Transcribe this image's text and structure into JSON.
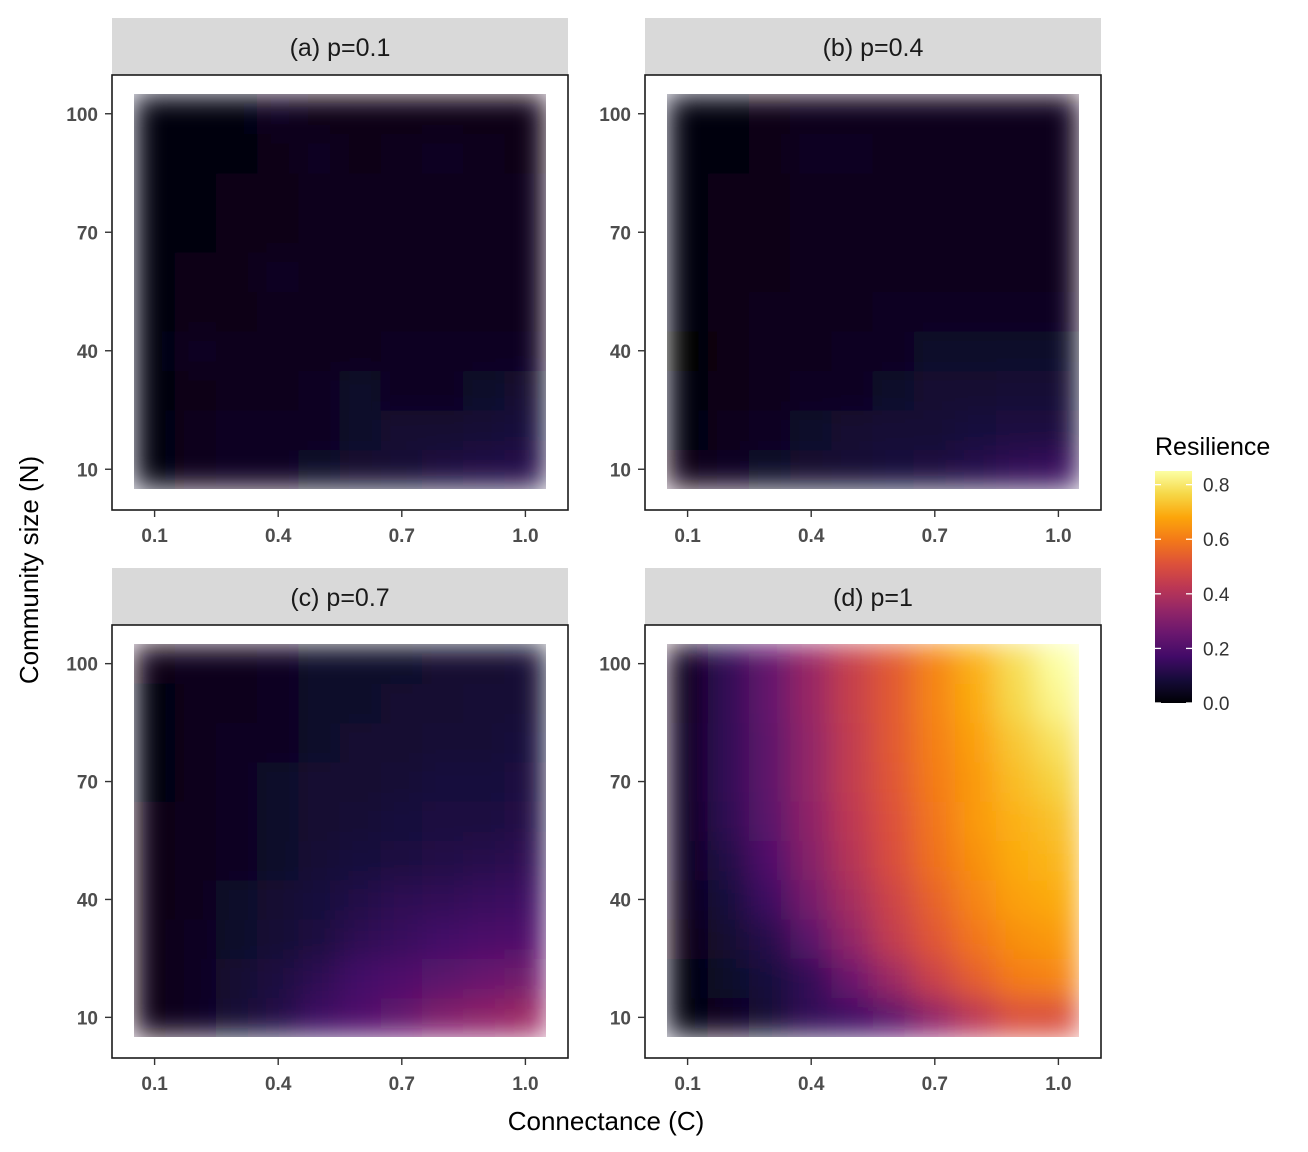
{
  "chart_data": {
    "type": "heatmap",
    "xlabel": "Connectance (C)",
    "ylabel": "Community size (N)",
    "x": [
      0.1,
      0.2,
      0.3,
      0.4,
      0.5,
      0.6,
      0.7,
      0.8,
      0.9,
      1.0
    ],
    "y": [
      10,
      20,
      30,
      40,
      50,
      60,
      70,
      80,
      90,
      100
    ],
    "x_ticks": [
      "0.1",
      "0.4",
      "0.7",
      "1.0"
    ],
    "y_ticks": [
      "10",
      "40",
      "70",
      "100"
    ],
    "xlim": [
      0.05,
      1.05
    ],
    "ylim": [
      5,
      105
    ],
    "legend": {
      "title": "Resilience",
      "position": "right",
      "ticks": [
        "0.0",
        "0.2",
        "0.4",
        "0.6",
        "0.8"
      ],
      "range": [
        0,
        0.85
      ],
      "colormap": "inferno"
    },
    "panels": [
      {
        "strip": "(a)   p=0.1",
        "z": [
          [
            0.02,
            0.04,
            0.05,
            0.05,
            0.06,
            0.07,
            0.08,
            0.1,
            0.11,
            0.12
          ],
          [
            0.02,
            0.04,
            0.05,
            0.05,
            0.05,
            0.06,
            0.07,
            0.07,
            0.08,
            0.09
          ],
          [
            0.02,
            0.03,
            0.04,
            0.04,
            0.05,
            0.06,
            0.05,
            0.05,
            0.06,
            0.07
          ],
          [
            0.02,
            0.05,
            0.04,
            0.04,
            0.04,
            0.04,
            0.05,
            0.05,
            0.05,
            0.05
          ],
          [
            0.02,
            0.03,
            0.03,
            0.04,
            0.04,
            0.04,
            0.04,
            0.04,
            0.04,
            0.04
          ],
          [
            0.02,
            0.03,
            0.03,
            0.05,
            0.04,
            0.04,
            0.04,
            0.04,
            0.04,
            0.04
          ],
          [
            0.02,
            0.02,
            0.03,
            0.03,
            0.04,
            0.04,
            0.04,
            0.04,
            0.04,
            0.04
          ],
          [
            0.01,
            0.02,
            0.03,
            0.03,
            0.04,
            0.04,
            0.04,
            0.04,
            0.04,
            0.04
          ],
          [
            0.01,
            0.02,
            0.02,
            0.03,
            0.05,
            0.03,
            0.04,
            0.05,
            0.04,
            0.03
          ],
          [
            0.01,
            0.02,
            0.02,
            0.05,
            0.03,
            0.03,
            0.03,
            0.03,
            0.03,
            0.03
          ]
        ]
      },
      {
        "strip": "(b)   p=0.4",
        "z": [
          [
            0.03,
            0.05,
            0.06,
            0.07,
            0.08,
            0.09,
            0.1,
            0.12,
            0.14,
            0.15
          ],
          [
            0.02,
            0.04,
            0.05,
            0.06,
            0.07,
            0.08,
            0.08,
            0.09,
            0.1,
            0.1
          ],
          [
            0.01,
            0.03,
            0.04,
            0.05,
            0.05,
            0.06,
            0.07,
            0.07,
            0.08,
            0.08
          ],
          [
            0.0,
            0.03,
            0.04,
            0.04,
            0.05,
            0.05,
            0.06,
            0.06,
            0.06,
            0.06
          ],
          [
            0.01,
            0.03,
            0.04,
            0.04,
            0.04,
            0.05,
            0.05,
            0.05,
            0.05,
            0.05
          ],
          [
            0.02,
            0.03,
            0.03,
            0.04,
            0.04,
            0.04,
            0.04,
            0.04,
            0.04,
            0.04
          ],
          [
            0.01,
            0.03,
            0.03,
            0.04,
            0.04,
            0.04,
            0.04,
            0.04,
            0.04,
            0.04
          ],
          [
            0.01,
            0.03,
            0.03,
            0.04,
            0.04,
            0.04,
            0.04,
            0.04,
            0.04,
            0.04
          ],
          [
            0.01,
            0.02,
            0.03,
            0.05,
            0.05,
            0.04,
            0.04,
            0.04,
            0.04,
            0.04
          ],
          [
            0.01,
            0.02,
            0.03,
            0.04,
            0.04,
            0.04,
            0.04,
            0.04,
            0.04,
            0.04
          ]
        ]
      },
      {
        "strip": "(c)   p=0.7",
        "z": [
          [
            0.03,
            0.05,
            0.08,
            0.11,
            0.16,
            0.2,
            0.24,
            0.3,
            0.33,
            0.36
          ],
          [
            0.03,
            0.05,
            0.07,
            0.1,
            0.13,
            0.17,
            0.2,
            0.22,
            0.25,
            0.27
          ],
          [
            0.03,
            0.05,
            0.06,
            0.08,
            0.1,
            0.13,
            0.15,
            0.17,
            0.19,
            0.2
          ],
          [
            0.03,
            0.04,
            0.06,
            0.07,
            0.09,
            0.11,
            0.13,
            0.14,
            0.15,
            0.16
          ],
          [
            0.03,
            0.04,
            0.05,
            0.06,
            0.08,
            0.09,
            0.1,
            0.11,
            0.12,
            0.13
          ],
          [
            0.03,
            0.04,
            0.05,
            0.06,
            0.07,
            0.08,
            0.09,
            0.1,
            0.1,
            0.11
          ],
          [
            0.02,
            0.04,
            0.05,
            0.06,
            0.07,
            0.07,
            0.08,
            0.09,
            0.09,
            0.1
          ],
          [
            0.02,
            0.04,
            0.05,
            0.05,
            0.06,
            0.07,
            0.07,
            0.08,
            0.08,
            0.09
          ],
          [
            0.02,
            0.04,
            0.04,
            0.05,
            0.06,
            0.06,
            0.07,
            0.07,
            0.08,
            0.08
          ],
          [
            0.03,
            0.04,
            0.04,
            0.05,
            0.06,
            0.06,
            0.06,
            0.07,
            0.07,
            0.08
          ]
        ]
      },
      {
        "strip": "(d)   p=1",
        "z": [
          [
            0.02,
            0.05,
            0.08,
            0.14,
            0.16,
            0.22,
            0.33,
            0.42,
            0.5,
            0.5
          ],
          [
            0.02,
            0.06,
            0.09,
            0.14,
            0.26,
            0.36,
            0.46,
            0.54,
            0.6,
            0.62
          ],
          [
            0.03,
            0.07,
            0.12,
            0.22,
            0.34,
            0.44,
            0.52,
            0.59,
            0.64,
            0.66
          ],
          [
            0.04,
            0.09,
            0.16,
            0.28,
            0.38,
            0.47,
            0.55,
            0.62,
            0.67,
            0.69
          ],
          [
            0.05,
            0.11,
            0.2,
            0.31,
            0.41,
            0.5,
            0.58,
            0.64,
            0.69,
            0.71
          ],
          [
            0.05,
            0.13,
            0.22,
            0.33,
            0.43,
            0.51,
            0.59,
            0.66,
            0.7,
            0.73
          ],
          [
            0.05,
            0.14,
            0.23,
            0.34,
            0.44,
            0.52,
            0.6,
            0.66,
            0.72,
            0.76
          ],
          [
            0.05,
            0.14,
            0.23,
            0.34,
            0.44,
            0.53,
            0.61,
            0.67,
            0.74,
            0.79
          ],
          [
            0.04,
            0.14,
            0.24,
            0.35,
            0.45,
            0.53,
            0.62,
            0.69,
            0.77,
            0.83
          ],
          [
            0.04,
            0.14,
            0.24,
            0.35,
            0.45,
            0.53,
            0.62,
            0.7,
            0.78,
            0.85
          ]
        ]
      }
    ]
  }
}
